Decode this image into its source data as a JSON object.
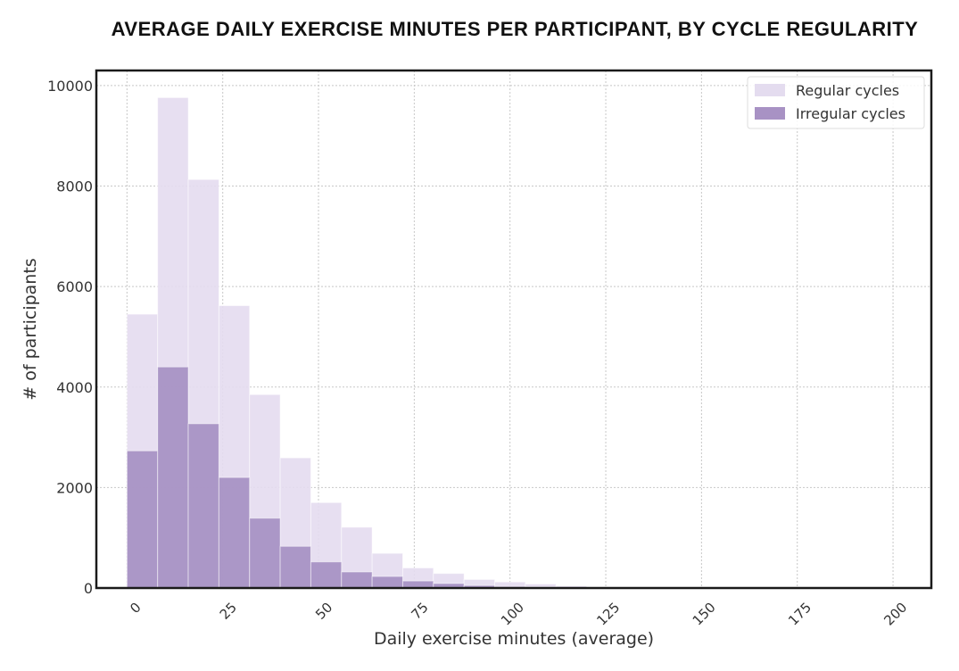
{
  "chart_data": {
    "type": "bar",
    "title": "AVERAGE DAILY EXERCISE MINUTES PER PARTICIPANT, BY CYCLE REGULARITY",
    "xlabel": "Daily exercise minutes (average)",
    "ylabel": "# of participants",
    "xlim": [
      -8,
      210
    ],
    "ylim": [
      0,
      10300
    ],
    "xticks": [
      0,
      25,
      50,
      75,
      100,
      125,
      150,
      175,
      200
    ],
    "yticks": [
      0,
      2000,
      4000,
      6000,
      8000,
      10000
    ],
    "grid": true,
    "legend_position": "top-right",
    "bin_edges": [
      0,
      8,
      16,
      24,
      32,
      40,
      48,
      56,
      64,
      72,
      80,
      88,
      96,
      104,
      112,
      120
    ],
    "series": [
      {
        "name": "Regular cycles",
        "color": "#e4dcef",
        "values": [
          5450,
          9760,
          8130,
          5620,
          3850,
          2590,
          1700,
          1210,
          690,
          400,
          290,
          170,
          120,
          80,
          40
        ]
      },
      {
        "name": "Irregular cycles",
        "color": "#a892c4",
        "values": [
          2730,
          4400,
          3270,
          2200,
          1390,
          830,
          520,
          320,
          230,
          140,
          90,
          50,
          30,
          20,
          10
        ]
      }
    ]
  }
}
